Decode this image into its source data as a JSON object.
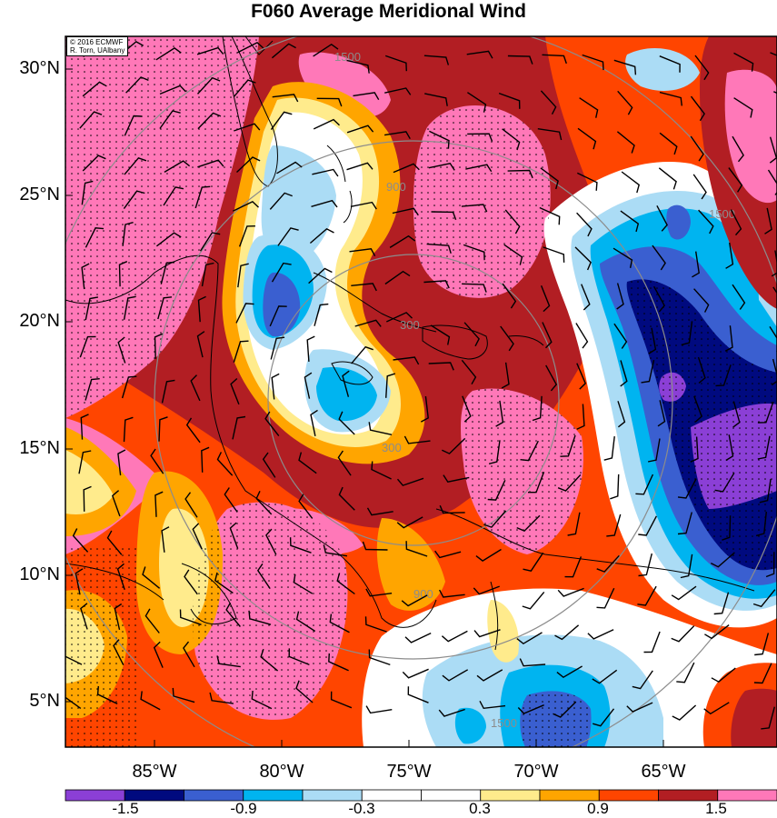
{
  "title": "F060 Average Meridional Wind",
  "credit": {
    "line1": "© 2016 ECMWF",
    "line2": "R. Torn, UAlbany"
  },
  "latitude_labels": [
    "30°N",
    "25°N",
    "20°N",
    "15°N",
    "10°N",
    "5°N"
  ],
  "longitude_labels": [
    "85°W",
    "80°W",
    "75°W",
    "70°W",
    "65°W"
  ],
  "colorbar": {
    "colors": [
      "#8b3fd6",
      "#000a7f",
      "#3a5fd0",
      "#00b4f0",
      "#abdcf5",
      "#ffffff",
      "#ffffff",
      "#ffeb8c",
      "#ffa500",
      "#ff4500",
      "#b21e23",
      "#ff78b8"
    ],
    "labels": [
      "-1.5",
      "-0.9",
      "-0.3",
      "0.3",
      "0.9",
      "1.5"
    ]
  },
  "range_ring_labels": [
    "300",
    "900",
    "1500"
  ]
}
